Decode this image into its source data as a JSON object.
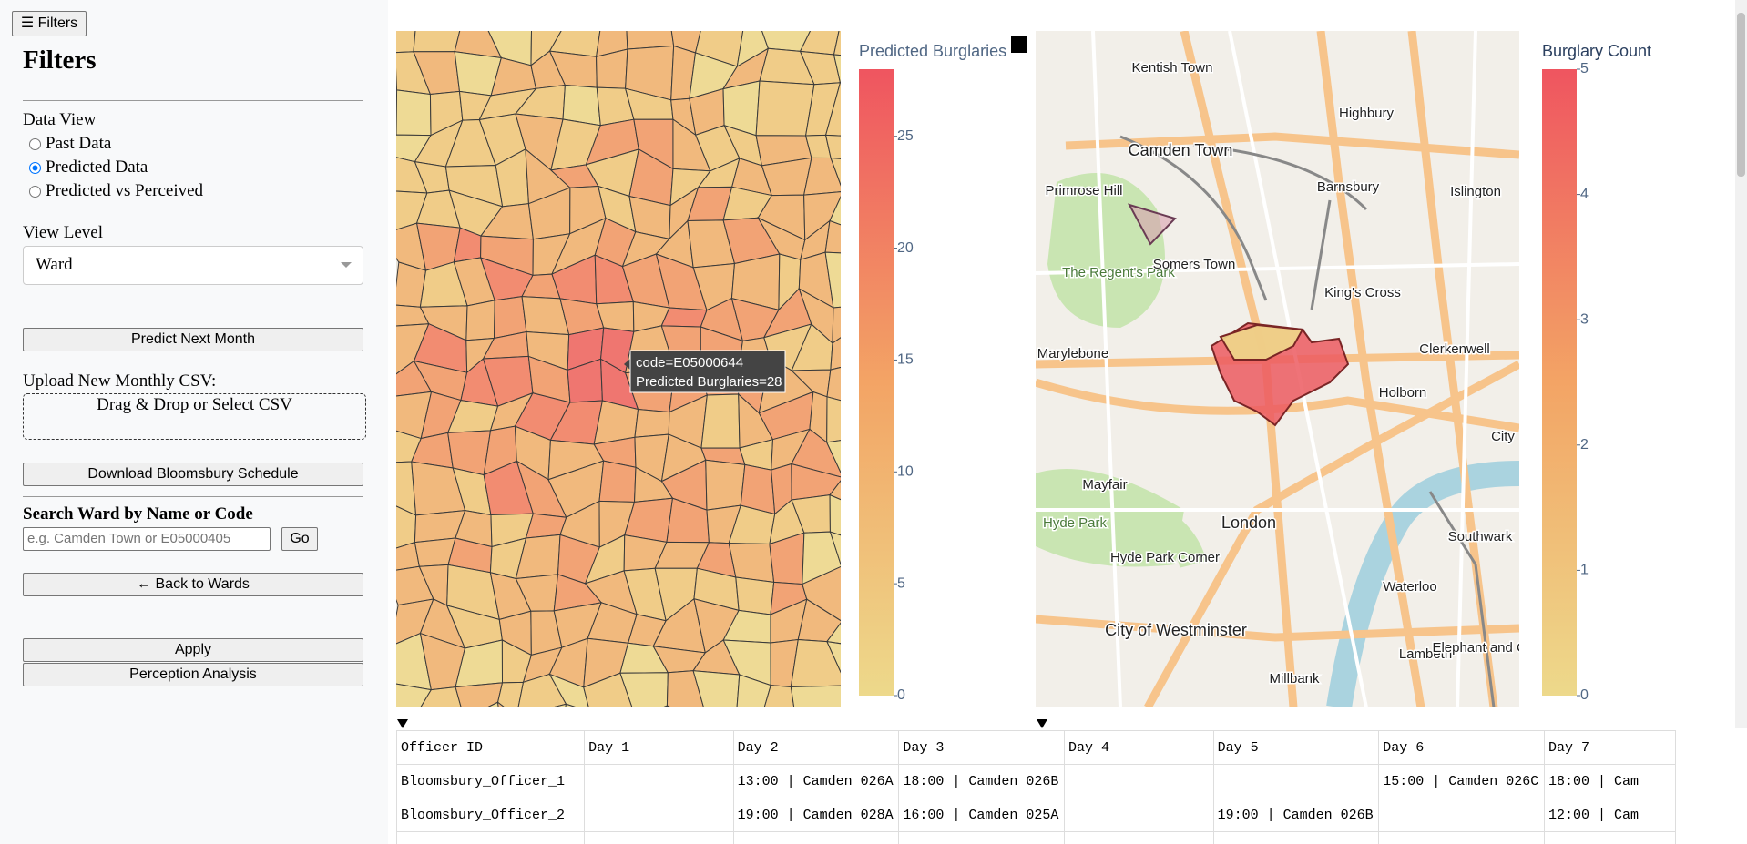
{
  "sidebar": {
    "toggle": "☰ Filters",
    "title": "Filters",
    "data_view": {
      "label": "Data View",
      "options": [
        "Past Data",
        "Predicted Data",
        "Predicted vs Perceived"
      ],
      "selected": 1
    },
    "view_level": {
      "label": "View Level",
      "value": "Ward"
    },
    "predict_button": "Predict Next Month",
    "upload": {
      "label": "Upload New Monthly CSV:",
      "dropzone": "Drag & Drop or Select CSV"
    },
    "download_button": "Download Bloomsbury Schedule",
    "search": {
      "label": "Search Ward by Name or Code",
      "placeholder": "e.g. Camden Town or E05000405",
      "go": "Go"
    },
    "back_button": "← Back to Wards",
    "apply_button": "Apply",
    "perception_button": "Perception Analysis"
  },
  "maps": [
    {
      "colorbar": {
        "title": "Predicted Burglaries",
        "lim": [
          0,
          28
        ],
        "ticks": [
          0,
          5,
          10,
          15,
          20,
          25
        ]
      },
      "tooltip": [
        "code=E05000644",
        "Predicted Burglaries=28"
      ]
    },
    {
      "colorbar": {
        "title": "Burglary Count",
        "lim": [
          0,
          5
        ],
        "ticks": [
          0,
          1,
          2,
          3,
          4,
          5
        ]
      },
      "labels": [
        "Kentish Town",
        "Camden Town",
        "Highbury",
        "Barnsbury",
        "Islington",
        "Primrose Hill",
        "The Regent's Park",
        "Somers Town",
        "King's Cross",
        "Marylebone",
        "Clerkenwell",
        "Holborn",
        "City",
        "Mayfair",
        "Hyde Park",
        "London",
        "Hyde Park Corner",
        "Southwark",
        "Waterloo",
        "City of Westminster",
        "Lambeth",
        "Millbank",
        "Elephant and Castle"
      ]
    }
  ],
  "table": {
    "columns": [
      "Officer ID",
      "Day 1",
      "Day 2",
      "Day 3",
      "Day 4",
      "Day 5",
      "Day 6",
      "Day 7"
    ],
    "rows": [
      [
        "Bloomsbury_Officer_1",
        null,
        "13:00 | Camden 026A",
        "18:00 | Camden 026B",
        null,
        null,
        "15:00 | Camden 026C",
        "18:00 | Cam"
      ],
      [
        "Bloomsbury_Officer_2",
        null,
        "19:00 | Camden 028A",
        "16:00 | Camden 025A",
        null,
        "19:00 | Camden 026B",
        null,
        "12:00 | Cam"
      ]
    ]
  }
}
